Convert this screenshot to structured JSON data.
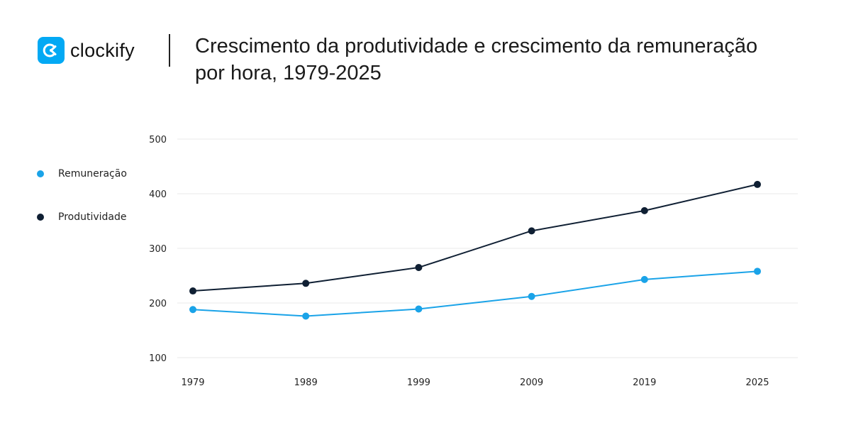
{
  "brand": {
    "name": "clockify",
    "color": "#03a9f4"
  },
  "title": "Crescimento da produtividade e crescimento da remuneração por hora, 1979-2025",
  "chart_data": {
    "type": "line",
    "title": "Crescimento da produtividade e crescimento da remuneração por hora, 1979-2025",
    "categories": [
      "1979",
      "1989",
      "1999",
      "2009",
      "2019",
      "2025"
    ],
    "series": [
      {
        "name": "Remuneração",
        "color": "#1aa3e8",
        "values": [
          188,
          176,
          189,
          212,
          243,
          258
        ]
      },
      {
        "name": "Produtividade",
        "color": "#0f1f33",
        "values": [
          222,
          236,
          265,
          332,
          369,
          417
        ]
      }
    ],
    "ylim": [
      100,
      500
    ],
    "yticks": [
      100,
      200,
      300,
      400,
      500
    ],
    "grid": true,
    "legend": "left",
    "xlabel": "",
    "ylabel": ""
  }
}
